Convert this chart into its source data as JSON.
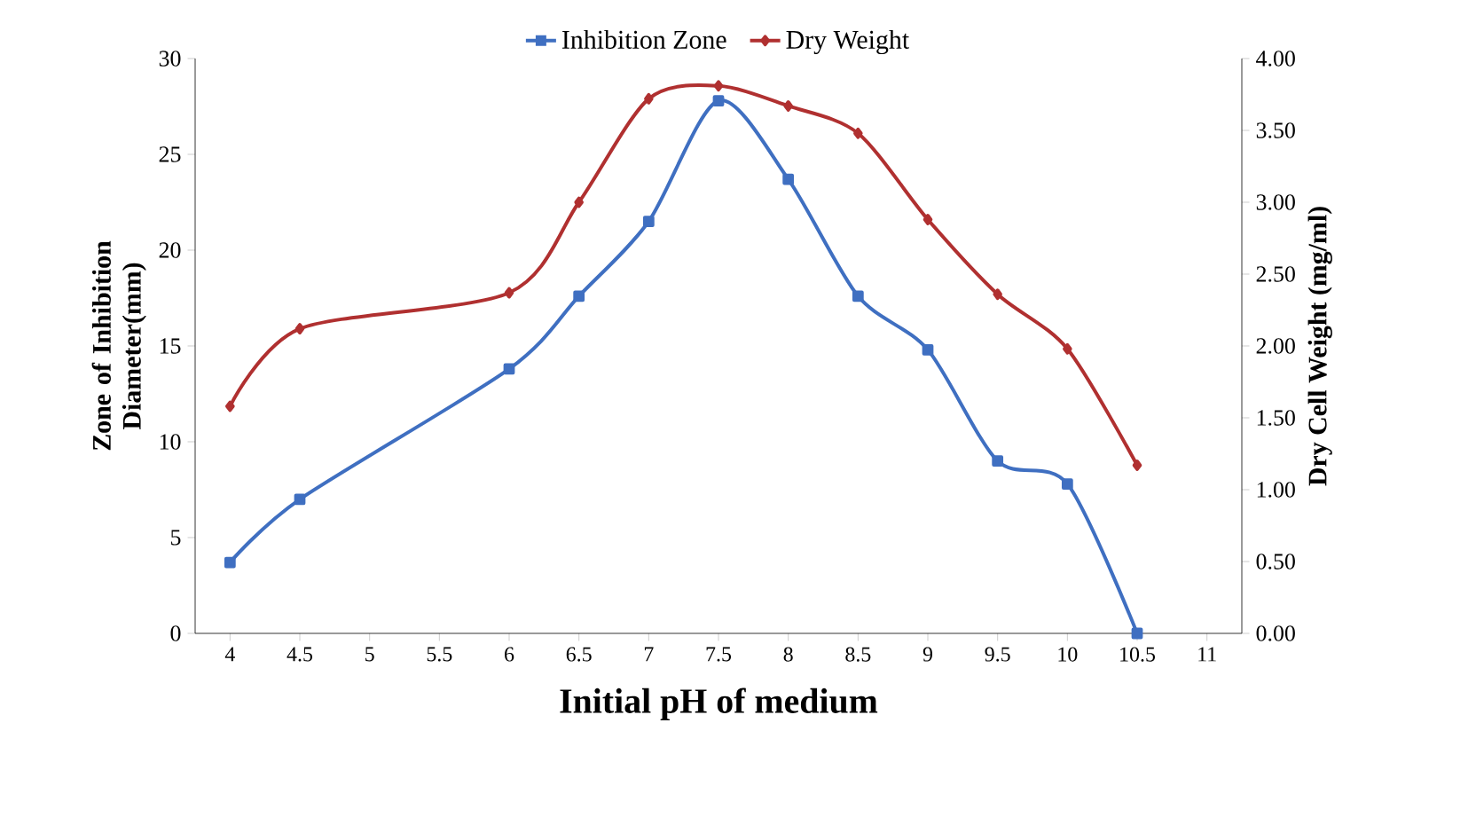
{
  "chart_data": {
    "type": "line",
    "xlabel": "Initial pH of medium",
    "ylabel": "Zone of Inhibition Diameter(mm)",
    "y2label": "Dry Cell Weight (mg/ml)",
    "x": [
      4,
      4.5,
      6,
      6.5,
      7,
      7.5,
      8,
      8.5,
      9,
      9.5,
      10,
      10.5
    ],
    "xlim": [
      3.75,
      11.25
    ],
    "xticks": [
      4,
      4.5,
      5,
      5.5,
      6,
      6.5,
      7,
      7.5,
      8,
      8.5,
      9,
      9.5,
      10,
      10.5,
      11
    ],
    "ylim": [
      0,
      30
    ],
    "yticks": [
      0,
      5,
      10,
      15,
      20,
      25,
      30
    ],
    "y2lim": [
      0,
      4
    ],
    "y2ticks": [
      {
        "value": 0,
        "label": "0.00"
      },
      {
        "value": 0.5,
        "label": "0.50"
      },
      {
        "value": 1,
        "label": "1.00"
      },
      {
        "value": 1.5,
        "label": "1.50"
      },
      {
        "value": 2,
        "label": "2.00"
      },
      {
        "value": 2.5,
        "label": "2.50"
      },
      {
        "value": 3,
        "label": "3.00"
      },
      {
        "value": 3.5,
        "label": "3.50"
      },
      {
        "value": 4,
        "label": "4.00"
      }
    ],
    "series": [
      {
        "name": "Inhibition Zone",
        "color": "#3f6fc1",
        "marker": "square",
        "values": [
          3.7,
          7.0,
          13.8,
          17.6,
          21.5,
          27.8,
          23.7,
          17.6,
          14.8,
          9.0,
          7.8,
          0
        ]
      },
      {
        "name": "Dry Weight",
        "color": "#b03030",
        "marker": "diamond",
        "axis": "y2",
        "values": [
          1.58,
          2.12,
          2.37,
          3.0,
          3.72,
          3.81,
          3.67,
          3.48,
          2.88,
          2.36,
          1.98,
          1.17
        ]
      }
    ],
    "legend": "top",
    "grid": false
  }
}
